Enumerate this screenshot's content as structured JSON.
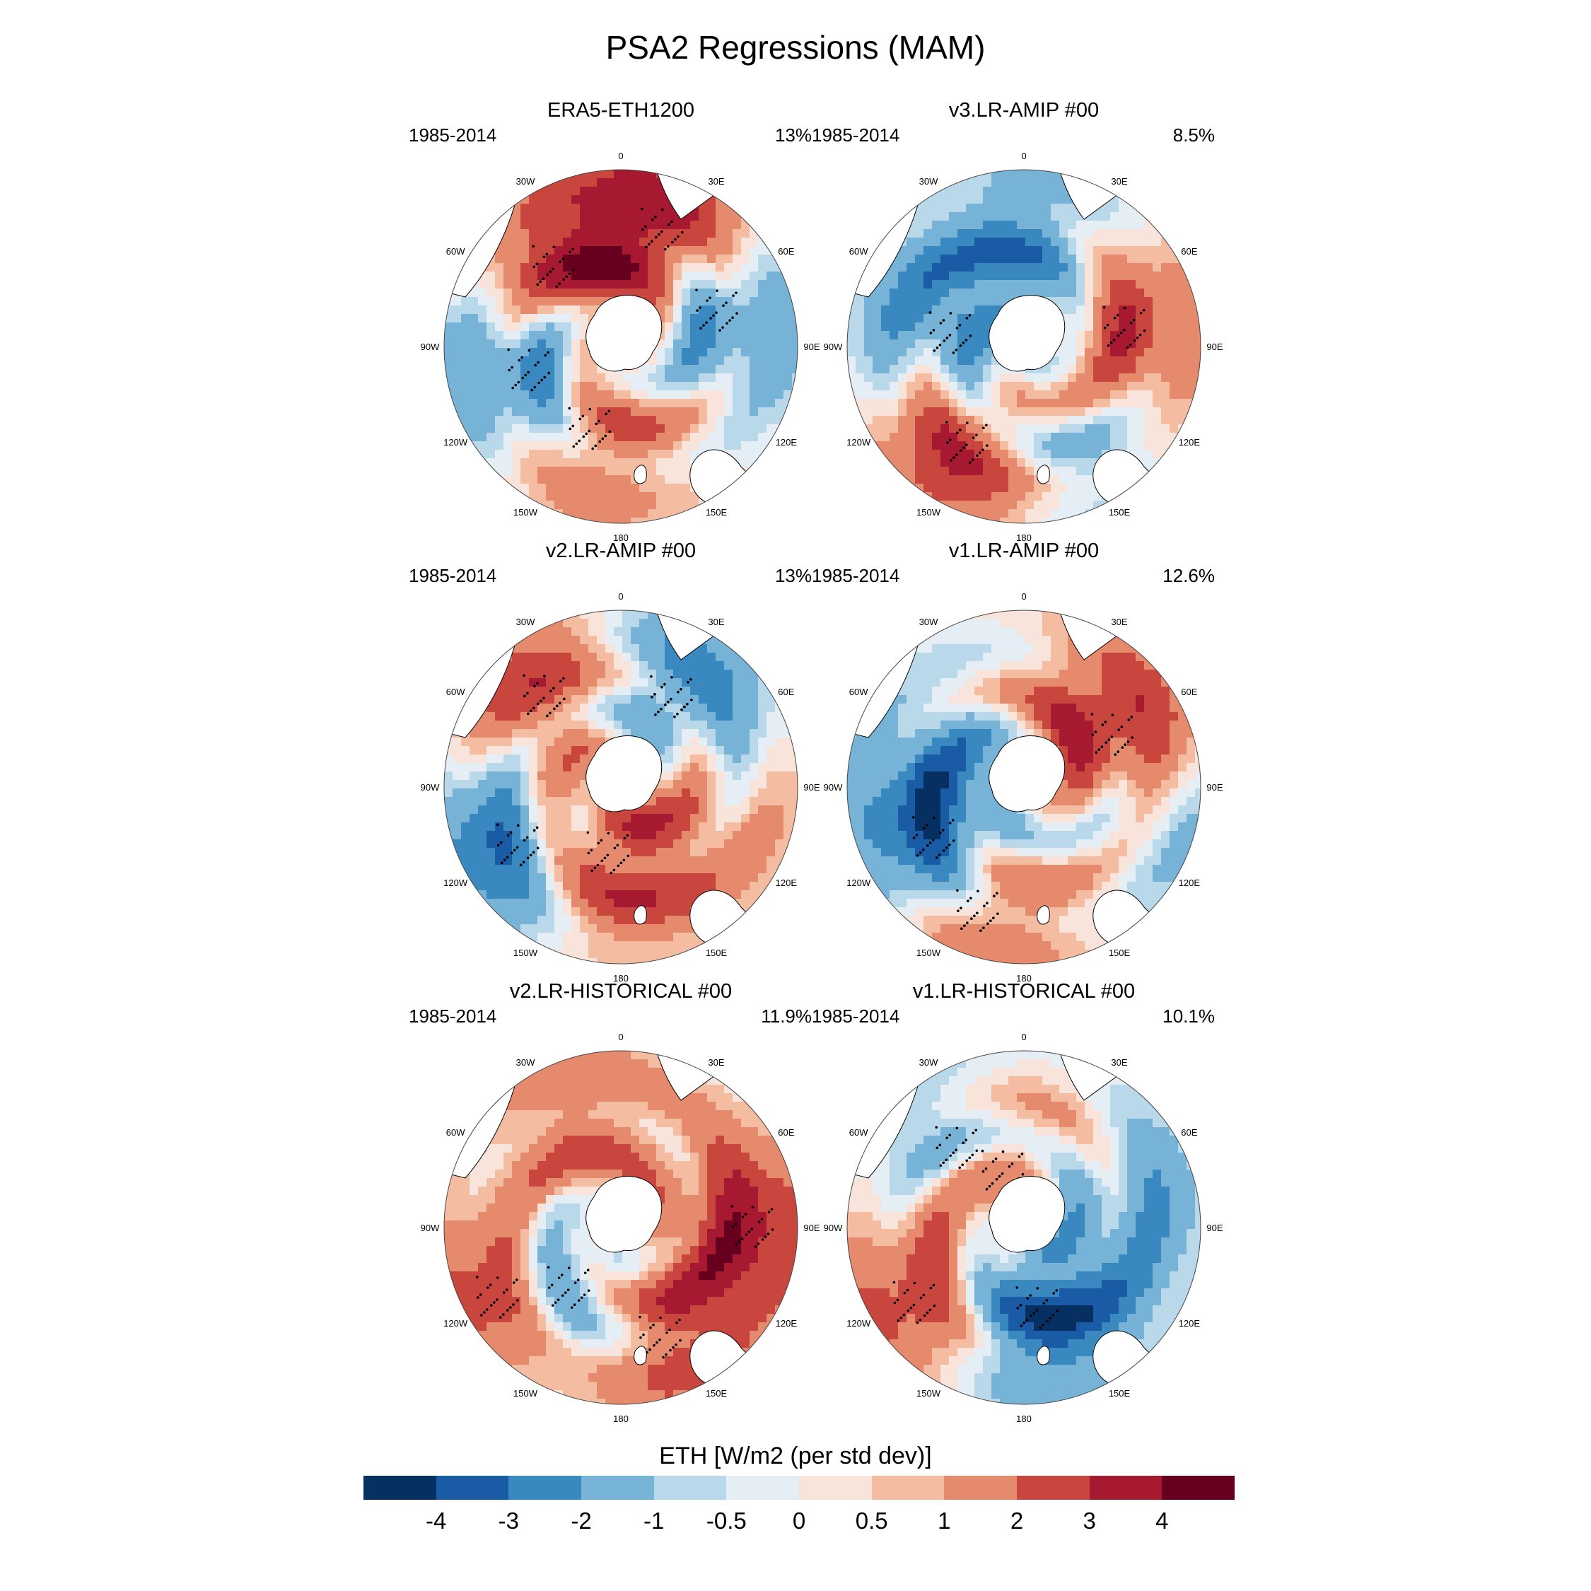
{
  "title": "PSA2 Regressions (MAM)",
  "panels": [
    {
      "title": "ERA5-ETH1200",
      "period": "1985-2014",
      "percent": "13%"
    },
    {
      "title": "v3.LR-AMIP  #00",
      "period": "1985-2014",
      "percent": "8.5%"
    },
    {
      "title": "v2.LR-AMIP  #00",
      "period": "1985-2014",
      "percent": "13%"
    },
    {
      "title": "v1.LR-AMIP  #00",
      "period": "1985-2014",
      "percent": "12.6%"
    },
    {
      "title": "v2.LR-HISTORICAL  #00",
      "period": "1985-2014",
      "percent": "11.9%"
    },
    {
      "title": "v1.LR-HISTORICAL  #00",
      "period": "1985-2014",
      "percent": "10.1%"
    }
  ],
  "longitude_labels": [
    "0",
    "30E",
    "60E",
    "90E",
    "120E",
    "150E",
    "180",
    "150W",
    "120W",
    "90W",
    "60W",
    "30W"
  ],
  "colorbar": {
    "title": "ETH [W/m2 (per std dev)]",
    "labels": [
      "-4",
      "-3",
      "-2",
      "-1",
      "-0.5",
      "0",
      "0.5",
      "1",
      "2",
      "3",
      "4"
    ],
    "colors": [
      "#053061",
      "#1a5ba6",
      "#3a88c0",
      "#77b3d6",
      "#b9d8ea",
      "#e4eef4",
      "#f9e4dc",
      "#f4bca0",
      "#e68a6e",
      "#c9463f",
      "#a71930",
      "#67001f"
    ]
  },
  "chart_data": {
    "type": "heatmap",
    "projection": "south-polar-stereographic",
    "variable": "ETH",
    "units": "W/m2 (per std dev)",
    "levels": [
      -4,
      -3,
      -2,
      -1,
      -0.5,
      0,
      0.5,
      1,
      2,
      3,
      4
    ],
    "season": "MAM",
    "period": "1985-2014",
    "panels": [
      {
        "name": "ERA5-ETH1200",
        "variance_explained_pct": 13,
        "features": [
          {
            "lon": -105,
            "lat": -58,
            "value": -4
          },
          {
            "lon": 20,
            "lat": -48,
            "value": 4
          },
          {
            "lon": -160,
            "lat": -60,
            "value": 3
          },
          {
            "lon": 70,
            "lat": -55,
            "value": -3
          },
          {
            "lon": -40,
            "lat": -55,
            "value": 3
          }
        ]
      },
      {
        "name": "v3.LR-AMIP #00",
        "variance_explained_pct": 8.5,
        "features": [
          {
            "lon": -150,
            "lat": -52,
            "value": 4
          },
          {
            "lon": -80,
            "lat": -65,
            "value": -3
          },
          {
            "lon": 80,
            "lat": -55,
            "value": 3
          },
          {
            "lon": 10,
            "lat": -55,
            "value": -2
          },
          {
            "lon": 160,
            "lat": -55,
            "value": -2
          }
        ]
      },
      {
        "name": "v2.LR-AMIP #00",
        "variance_explained_pct": 13,
        "features": [
          {
            "lon": -120,
            "lat": -50,
            "value": -4
          },
          {
            "lon": -170,
            "lat": -67,
            "value": 4
          },
          {
            "lon": -40,
            "lat": -50,
            "value": 3
          },
          {
            "lon": 30,
            "lat": -55,
            "value": -3
          },
          {
            "lon": 100,
            "lat": -50,
            "value": 1
          }
        ]
      },
      {
        "name": "v1.LR-AMIP #00",
        "variance_explained_pct": 12.6,
        "features": [
          {
            "lon": 60,
            "lat": -55,
            "value": 4
          },
          {
            "lon": -120,
            "lat": -55,
            "value": -4
          },
          {
            "lon": -160,
            "lat": -45,
            "value": 3
          },
          {
            "lon": 100,
            "lat": -40,
            "value": -2
          },
          {
            "lon": -60,
            "lat": -65,
            "value": -1
          }
        ]
      },
      {
        "name": "v2.LR-HISTORICAL #00",
        "variance_explained_pct": 11.9,
        "features": [
          {
            "lon": -140,
            "lat": -63,
            "value": -4
          },
          {
            "lon": -120,
            "lat": -42,
            "value": 4
          },
          {
            "lon": 160,
            "lat": -50,
            "value": 3
          },
          {
            "lon": -20,
            "lat": -55,
            "value": 2
          },
          {
            "lon": 90,
            "lat": -45,
            "value": 3
          }
        ]
      },
      {
        "name": "v1.LR-HISTORICAL #00",
        "variance_explained_pct": 10.1,
        "features": [
          {
            "lon": -125,
            "lat": -45,
            "value": 3
          },
          {
            "lon": 170,
            "lat": -62,
            "value": -4
          },
          {
            "lon": -20,
            "lat": -70,
            "value": 4
          },
          {
            "lon": -40,
            "lat": -55,
            "value": -3
          },
          {
            "lon": 70,
            "lat": -55,
            "value": -2
          }
        ]
      }
    ]
  }
}
